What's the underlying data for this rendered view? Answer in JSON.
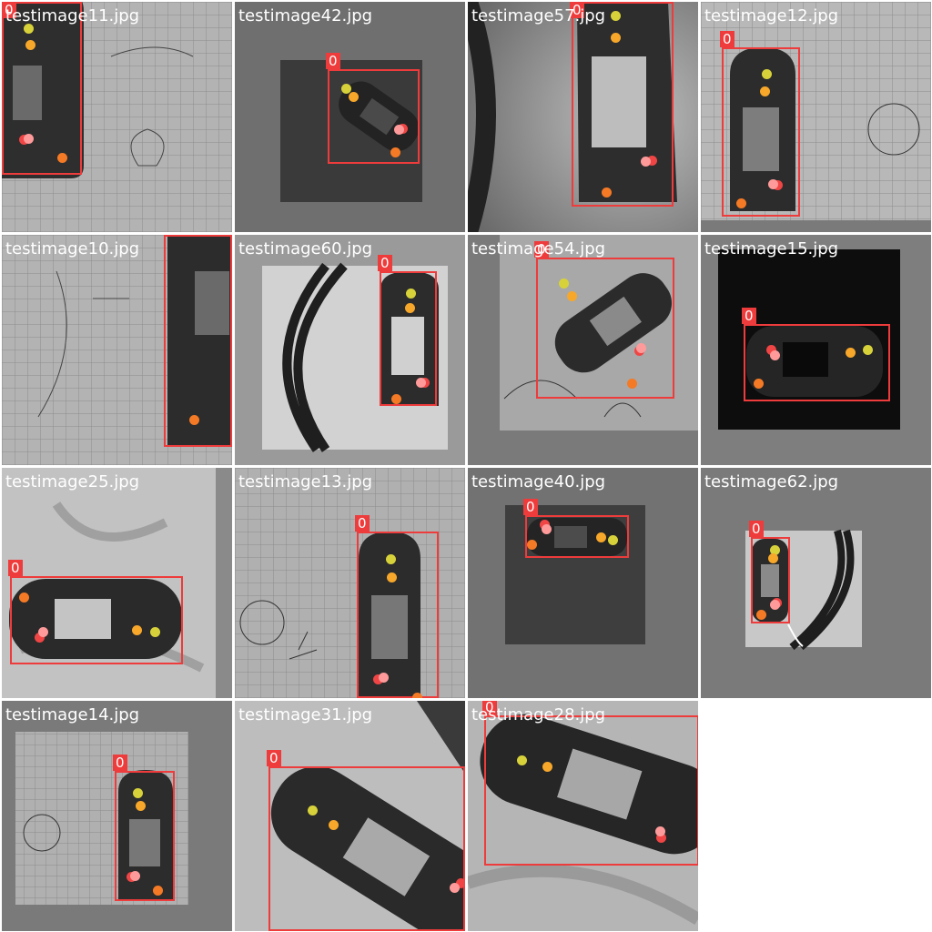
{
  "class_label": "0",
  "colors": {
    "box": "#ee3b3b",
    "kp_yellow": "#d7d23a",
    "kp_orange": "#f7a72a",
    "kp_pink": "#ff9a9a",
    "kp_red": "#f04545",
    "kp_deep_orange": "#f57a25"
  },
  "tiles": [
    {
      "filename": "testimage11.jpg"
    },
    {
      "filename": "testimage42.jpg"
    },
    {
      "filename": "testimage57.jpg"
    },
    {
      "filename": "testimage12.jpg"
    },
    {
      "filename": "testimage10.jpg"
    },
    {
      "filename": "testimage60.jpg"
    },
    {
      "filename": "testimage54.jpg"
    },
    {
      "filename": "testimage15.jpg"
    },
    {
      "filename": "testimage25.jpg"
    },
    {
      "filename": "testimage13.jpg"
    },
    {
      "filename": "testimage40.jpg"
    },
    {
      "filename": "testimage62.jpg"
    },
    {
      "filename": "testimage14.jpg"
    },
    {
      "filename": "testimage31.jpg"
    },
    {
      "filename": "testimage28.jpg"
    }
  ]
}
